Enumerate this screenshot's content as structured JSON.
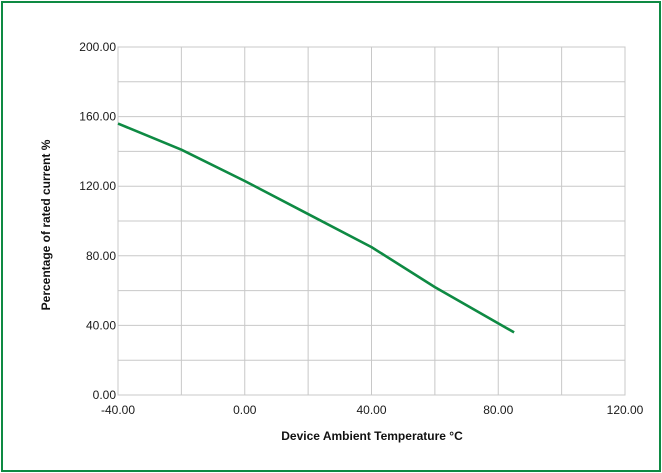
{
  "chart_data": {
    "type": "line",
    "title": "",
    "xlabel": "Device Ambient Temperature °C",
    "ylabel": "Percentage of rated current %",
    "xlim": [
      -40,
      120
    ],
    "ylim": [
      0,
      200
    ],
    "x_ticks": [
      "-40.00",
      "0.00",
      "40.00",
      "80.00",
      "120.00"
    ],
    "y_ticks": [
      "0.00",
      "40.00",
      "80.00",
      "120.00",
      "160.00",
      "200.00"
    ],
    "x_tick_values": [
      -40,
      0,
      40,
      80,
      120
    ],
    "y_tick_values": [
      0,
      40,
      80,
      120,
      160,
      200
    ],
    "x_minor_step": 20,
    "y_minor_step": 20,
    "grid": true,
    "legend": "none",
    "series": [
      {
        "x": [
          -40,
          -20,
          0,
          20,
          40,
          60,
          85
        ],
        "values": [
          156,
          141,
          123,
          104,
          85,
          62,
          36
        ]
      }
    ],
    "colors": {
      "line": "#0e8a43",
      "grid": "#c8c8c8",
      "frame": "#0e8a43"
    }
  }
}
